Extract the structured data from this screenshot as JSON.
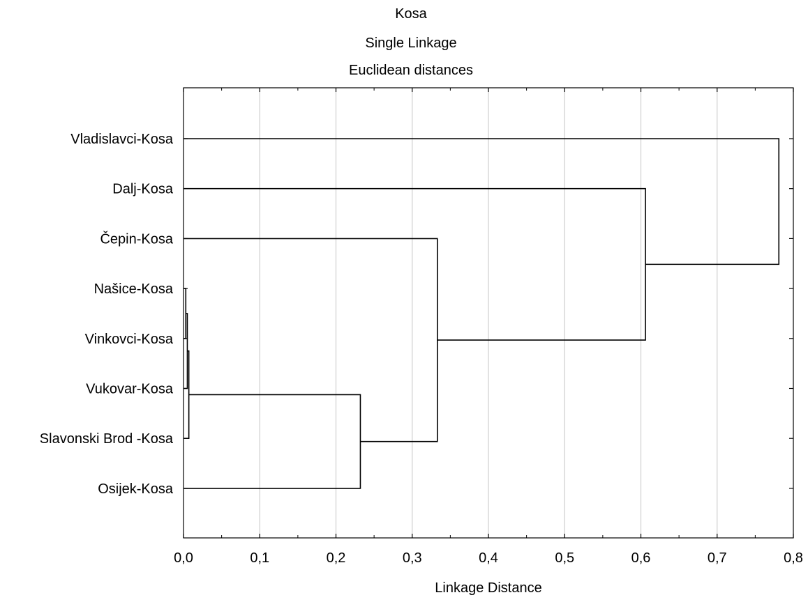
{
  "chart_data": {
    "type": "dendrogram",
    "orientation": "horizontal",
    "title_lines": [
      "Kosa",
      "Single Linkage",
      "Euclidean distances"
    ],
    "xlabel": "Linkage Distance",
    "ylabel": "",
    "xlim": [
      0.0,
      0.8
    ],
    "x_ticks": [
      0.0,
      0.1,
      0.2,
      0.3,
      0.4,
      0.5,
      0.6,
      0.7,
      0.8
    ],
    "x_tick_labels": [
      "0,0",
      "0,1",
      "0,2",
      "0,3",
      "0,4",
      "0,5",
      "0,6",
      "0,7",
      "0,8"
    ],
    "grid": "vertical",
    "leaves": [
      "Vladislavci-Kosa",
      "Dalj-Kosa",
      "Čepin-Kosa",
      "Našice-Kosa",
      "Vinkovci-Kosa",
      "Vukovar-Kosa",
      "Slavonski Brod -Kosa",
      "Osijek-Kosa"
    ],
    "merges": [
      {
        "a": "Našice-Kosa",
        "b": "Vinkovci-Kosa",
        "distance": 0.003
      },
      {
        "a": "Našice-Kosa+Vinkovci-Kosa",
        "b": "Vukovar-Kosa",
        "distance": 0.005
      },
      {
        "a": "Našice-Kosa+Vinkovci-Kosa+Vukovar-Kosa",
        "b": "Slavonski Brod -Kosa",
        "distance": 0.007
      },
      {
        "a": "Našice-Kosa+Vinkovci-Kosa+Vukovar-Kosa+Slavonski Brod -Kosa",
        "b": "Osijek-Kosa",
        "distance": 0.232
      },
      {
        "a": "Čepin-Kosa",
        "b": "Našice-Kosa+Vinkovci-Kosa+Vukovar-Kosa+Slavonski Brod -Kosa+Osijek-Kosa",
        "distance": 0.333
      },
      {
        "a": "Dalj-Kosa",
        "b": "Čepin-Kosa+Našice-Kosa+Vinkovci-Kosa+Vukovar-Kosa+Slavonski Brod -Kosa+Osijek-Kosa",
        "distance": 0.606
      },
      {
        "a": "Vladislavci-Kosa",
        "b": "Dalj-Kosa+Čepin-Kosa+Našice-Kosa+Vinkovci-Kosa+Vukovar-Kosa+Slavonski Brod -Kosa+Osijek-Kosa",
        "distance": 0.781
      }
    ]
  }
}
